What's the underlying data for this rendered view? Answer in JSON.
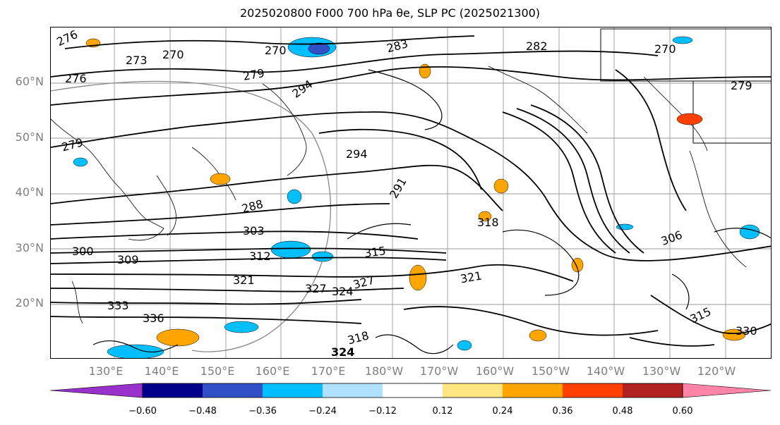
{
  "title": "2025020800 F000 700 hPa θe, SLP PC (2025021300)",
  "lat_labels": [
    "60°N",
    "50°N",
    "40°N",
    "30°N",
    "20°N"
  ],
  "lon_labels": [
    "130°E",
    "140°E",
    "150°E",
    "160°E",
    "170°E",
    "180°W",
    "170°W",
    "160°W",
    "150°W",
    "140°W",
    "130°W",
    "120°W"
  ],
  "contour_labels": [
    "276",
    "273",
    "270",
    "270",
    "283",
    "282",
    "270",
    "276",
    "279",
    "294",
    "279",
    "279",
    "294",
    "291",
    "288",
    "318",
    "303",
    "300",
    "309",
    "312",
    "315",
    "306",
    "321",
    "327",
    "324",
    "327",
    "321",
    "333",
    "336",
    "315",
    "318",
    "324",
    "330"
  ],
  "colorbar": {
    "ticks": [
      "−0.60",
      "−0.48",
      "−0.36",
      "−0.24",
      "−0.12",
      "0.12",
      "0.24",
      "0.36",
      "0.48",
      "0.60"
    ],
    "colors": [
      "#9932cc",
      "#00008b",
      "#3050c8",
      "#00bfff",
      "#b0e2ff",
      "#ffffff",
      "#ffe680",
      "#ffa500",
      "#ff4000",
      "#b22222",
      "#ff85a8"
    ]
  }
}
